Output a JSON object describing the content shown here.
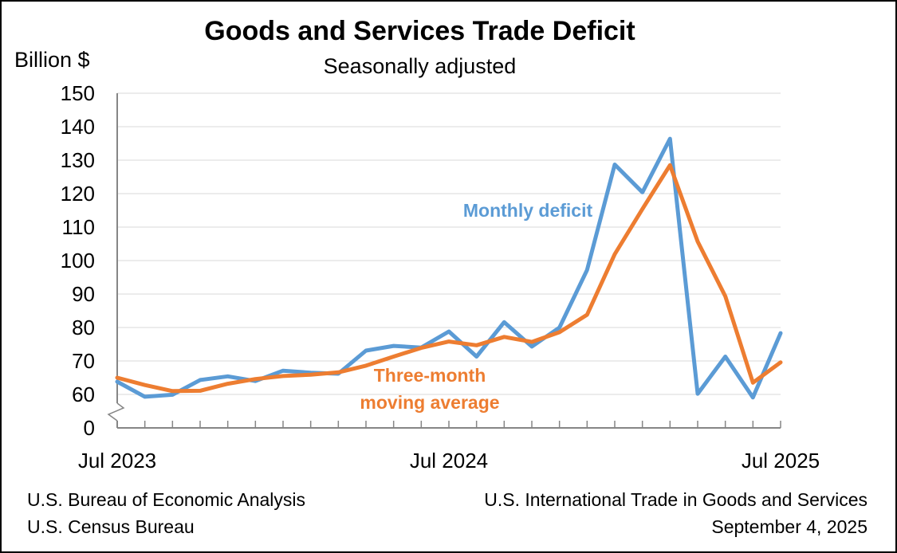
{
  "chart_data": {
    "type": "line",
    "title": "Goods and Services Trade Deficit",
    "subtitle": "Seasonally adjusted",
    "ylabel": "Billion $",
    "xlabel": "",
    "ylim": [
      0,
      150
    ],
    "y_axis_break": true,
    "yticks": [
      0,
      60,
      70,
      80,
      90,
      100,
      110,
      120,
      130,
      140,
      150
    ],
    "grid": true,
    "x": [
      "Jul 2023",
      "Aug 2023",
      "Sep 2023",
      "Oct 2023",
      "Nov 2023",
      "Dec 2023",
      "Jan 2024",
      "Feb 2024",
      "Mar 2024",
      "Apr 2024",
      "May 2024",
      "Jun 2024",
      "Jul 2024",
      "Aug 2024",
      "Sep 2024",
      "Oct 2024",
      "Nov 2024",
      "Dec 2024",
      "Jan 2025",
      "Feb 2025",
      "Mar 2025",
      "Apr 2025",
      "May 2025",
      "Jun 2025",
      "Jul 2025"
    ],
    "xtick_labels": [
      {
        "index": 0,
        "label": "Jul 2023"
      },
      {
        "index": 12,
        "label": "Jul 2024"
      },
      {
        "index": 24,
        "label": "Jul 2025"
      }
    ],
    "series": [
      {
        "name": "Monthly deficit",
        "color": "#5b9bd5",
        "values": [
          63.8,
          59.3,
          59.9,
          64.3,
          65.4,
          64.0,
          67.1,
          66.5,
          66.2,
          73.1,
          74.5,
          74.0,
          78.8,
          71.3,
          81.6,
          74.3,
          80.0,
          97.2,
          128.7,
          120.4,
          136.4,
          60.2,
          71.3,
          59.1,
          78.3
        ]
      },
      {
        "name": "Three-month moving average",
        "color": "#ed7d31",
        "values": [
          65.0,
          62.8,
          61.0,
          61.1,
          63.2,
          64.6,
          65.5,
          65.9,
          66.6,
          68.6,
          71.3,
          73.9,
          75.8,
          74.7,
          77.2,
          75.7,
          78.6,
          83.8,
          101.9,
          115.4,
          128.5,
          105.7,
          89.3,
          63.5,
          69.6
        ]
      }
    ],
    "annotations": [
      {
        "series": "Monthly deficit",
        "lines": [
          "Monthly deficit"
        ]
      },
      {
        "series": "Three-month moving average",
        "lines": [
          "Three-month",
          "moving average"
        ]
      }
    ]
  },
  "footer": {
    "source_line1": "U.S. Bureau of Economic Analysis",
    "source_line2": "U.S. Census Bureau",
    "report": "U.S. International Trade in Goods and Services",
    "date": "September 4, 2025"
  }
}
